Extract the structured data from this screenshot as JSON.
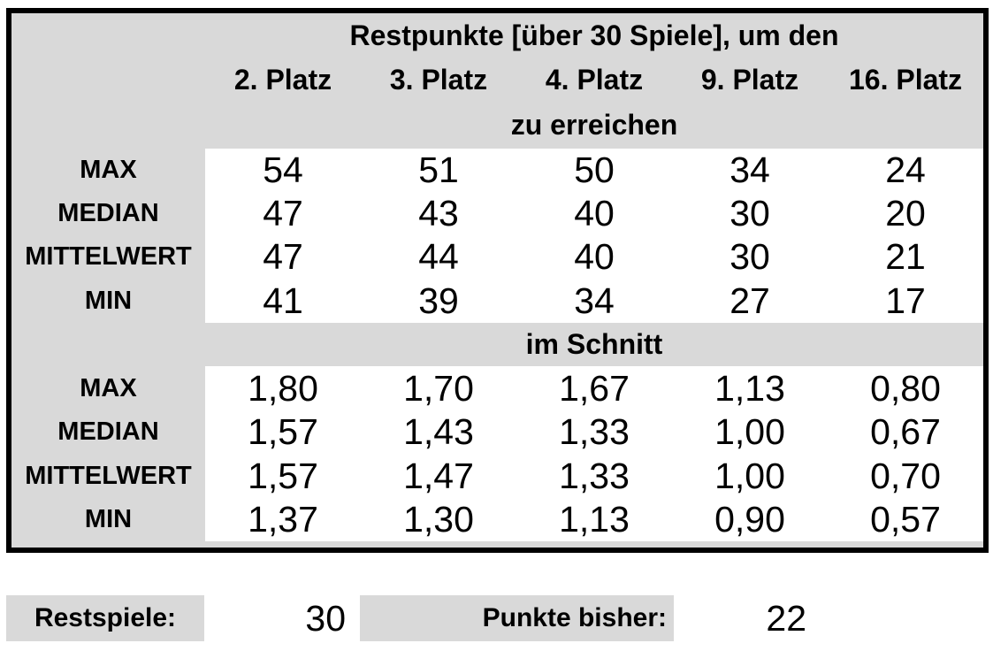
{
  "table": {
    "title": "Restpunkte [über 30 Spiele], um den",
    "subtitle": "zu erreichen",
    "columns": [
      "2. Platz",
      "3. Platz",
      "4. Platz",
      "9. Platz",
      "16. Platz"
    ],
    "sections": [
      {
        "name": "zu erreichen",
        "rows": [
          {
            "label": "MAX",
            "values": [
              "54",
              "51",
              "50",
              "34",
              "24"
            ]
          },
          {
            "label": "MEDIAN",
            "values": [
              "47",
              "43",
              "40",
              "30",
              "20"
            ]
          },
          {
            "label": "MITTELWERT",
            "values": [
              "47",
              "44",
              "40",
              "30",
              "21"
            ]
          },
          {
            "label": "MIN",
            "values": [
              "41",
              "39",
              "34",
              "27",
              "17"
            ]
          }
        ]
      },
      {
        "name": "im Schnitt",
        "rows": [
          {
            "label": "MAX",
            "values": [
              "1,80",
              "1,70",
              "1,67",
              "1,13",
              "0,80"
            ]
          },
          {
            "label": "MEDIAN",
            "values": [
              "1,57",
              "1,43",
              "1,33",
              "1,00",
              "0,67"
            ]
          },
          {
            "label": "MITTELWERT",
            "values": [
              "1,57",
              "1,47",
              "1,33",
              "1,00",
              "0,70"
            ]
          },
          {
            "label": "MIN",
            "values": [
              "1,37",
              "1,30",
              "1,13",
              "0,90",
              "0,57"
            ]
          }
        ]
      }
    ]
  },
  "footer": {
    "restspiele_label": "Restspiele:",
    "restspiele_value": "30",
    "punkte_label": "Punkte bisher:",
    "punkte_value": "22"
  },
  "colors": {
    "header_bg": "#d9d9d9",
    "data_bg": "#ffffff",
    "border": "#000000",
    "text": "#000000"
  }
}
